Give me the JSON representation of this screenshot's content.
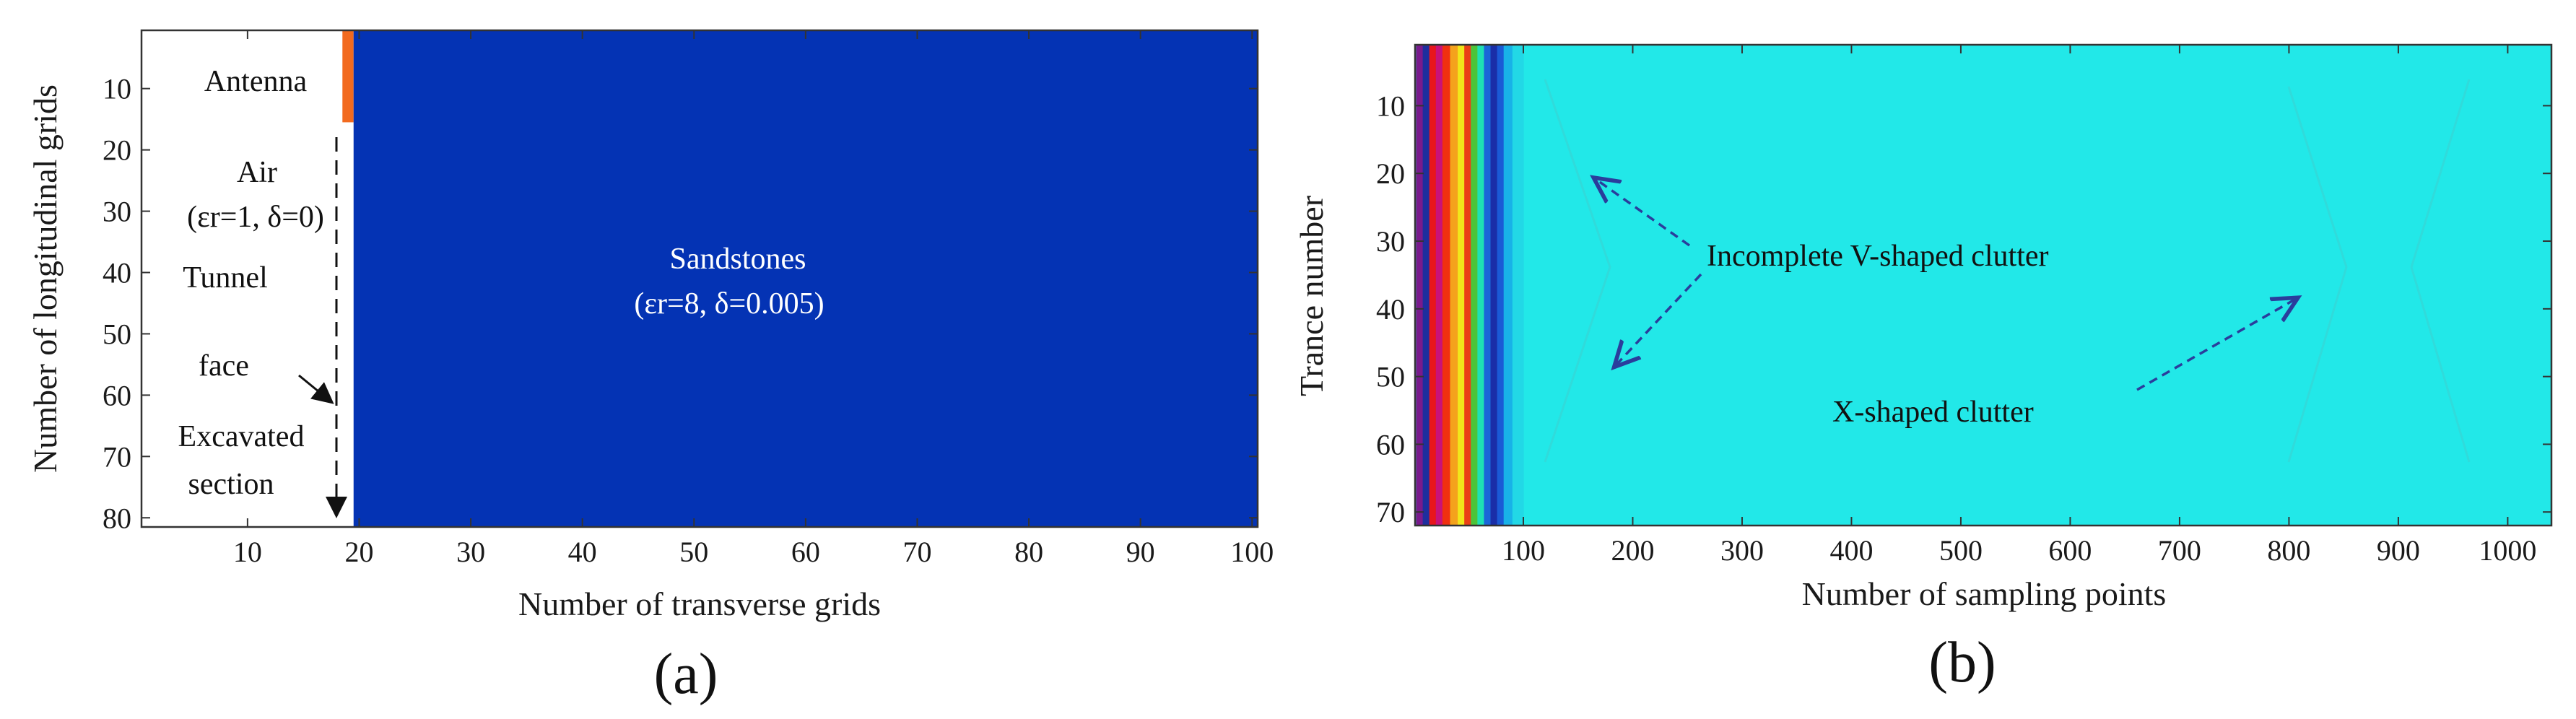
{
  "chart_data": [
    {
      "panel": "a",
      "panel_label": "(a)",
      "type": "heatmap",
      "xlabel": "Number of transverse grids",
      "ylabel": "Number of longitudinal grids",
      "xlim": [
        0.5,
        100.5
      ],
      "ylim": [
        81.5,
        0.5
      ],
      "y_reversed": true,
      "xticks": [
        10,
        20,
        30,
        40,
        50,
        60,
        70,
        80,
        90,
        100
      ],
      "yticks": [
        10,
        20,
        30,
        40,
        50,
        60,
        70,
        80
      ],
      "regions": [
        {
          "name": "Air",
          "x": [
            0.5,
            18.5
          ],
          "y": [
            0.5,
            81.5
          ],
          "color": "#ffffff"
        },
        {
          "name": "Antenna",
          "x": [
            18.5,
            19.5
          ],
          "y": [
            0.5,
            15.5
          ],
          "color": "#f26a1f"
        },
        {
          "name": "Sandstones",
          "x": [
            19.5,
            100.5
          ],
          "y": [
            0.5,
            81.5
          ],
          "color": "#0433b4"
        }
      ],
      "tunnel_face_x": 19,
      "annotations": {
        "antenna": "Antenna",
        "air": "Air",
        "air_params": "(εr=1, δ=0)",
        "tunnel": "Tunnel",
        "face": "face",
        "excavated": "Excavated",
        "section": "section",
        "sandstones": "Sandstones",
        "sandstones_params": "(εr=8, δ=0.005)"
      }
    },
    {
      "panel": "b",
      "panel_label": "(b)",
      "type": "heatmap",
      "xlabel": "Number of sampling points",
      "ylabel": "Trance number",
      "xlim": [
        1,
        1040
      ],
      "ylim": [
        72,
        1
      ],
      "y_reversed": true,
      "xticks": [
        100,
        200,
        300,
        400,
        500,
        600,
        700,
        800,
        900,
        1000
      ],
      "yticks": [
        10,
        20,
        30,
        40,
        50,
        60,
        70
      ],
      "colormap": "jet",
      "background_color": "#22e8e8",
      "direct_wave_bands": [
        {
          "x": [
            2,
            8
          ],
          "color": "#7a1a8c"
        },
        {
          "x": [
            8,
            14
          ],
          "color": "#1e2e9e"
        },
        {
          "x": [
            14,
            20
          ],
          "color": "#e8161c"
        },
        {
          "x": [
            20,
            26
          ],
          "color": "#c8127a"
        },
        {
          "x": [
            26,
            33
          ],
          "color": "#f03010"
        },
        {
          "x": [
            33,
            40
          ],
          "color": "#f4a21c"
        },
        {
          "x": [
            40,
            46
          ],
          "color": "#f1e61a"
        },
        {
          "x": [
            46,
            52
          ],
          "color": "#ea4016"
        },
        {
          "x": [
            52,
            58
          ],
          "color": "#4cc438"
        },
        {
          "x": [
            58,
            64
          ],
          "color": "#1ee0b4"
        },
        {
          "x": [
            64,
            70
          ],
          "color": "#1a66d8"
        },
        {
          "x": [
            70,
            76
          ],
          "color": "#1a2ea8"
        },
        {
          "x": [
            76,
            82
          ],
          "color": "#1a5ad6"
        },
        {
          "x": [
            82,
            90
          ],
          "color": "#18b2e8"
        },
        {
          "x": [
            90,
            100
          ],
          "color": "#22d8e6"
        }
      ],
      "annotations": {
        "incomplete_v": "Incomplete V-shaped clutter",
        "x_shaped": "X-shaped clutter"
      }
    }
  ]
}
